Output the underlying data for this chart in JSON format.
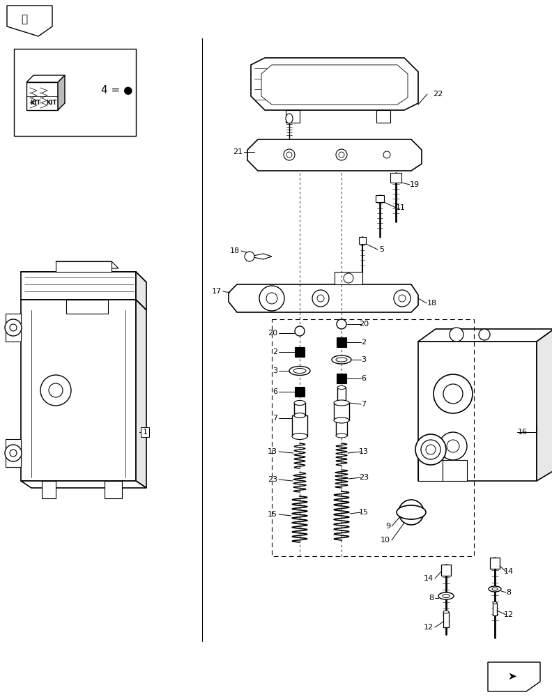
{
  "bg_color": "#ffffff",
  "line_color": "#000000",
  "fig_width": 7.92,
  "fig_height": 10.0,
  "dpi": 100
}
